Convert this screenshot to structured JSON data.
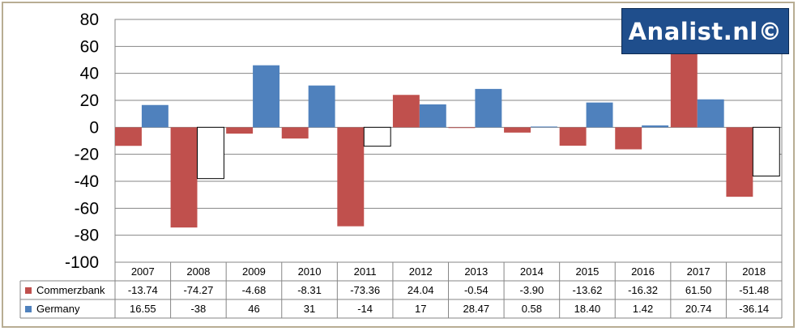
{
  "chart_data": {
    "type": "bar",
    "categories": [
      "2007",
      "2008",
      "2009",
      "2010",
      "2011",
      "2012",
      "2013",
      "2014",
      "2015",
      "2016",
      "2017",
      "2018"
    ],
    "series": [
      {
        "name": "Commerzbank",
        "color": "#c0504d",
        "values": [
          -13.74,
          -74.27,
          -4.68,
          -8.31,
          -73.36,
          24.04,
          -0.54,
          -3.9,
          -13.62,
          -16.32,
          61.5,
          -51.48
        ],
        "labels": [
          "-13.74",
          "-74.27",
          "-4.68",
          "-8.31",
          "-73.36",
          "24.04",
          "-0.54",
          "-3.90",
          "-13.62",
          "-16.32",
          "61.50",
          "-51.48"
        ]
      },
      {
        "name": "Germany",
        "color": "#4f81bd",
        "negative_fill": "#ffffff",
        "values": [
          16.55,
          -38,
          46,
          31,
          -14,
          17,
          28.47,
          0.58,
          18.4,
          1.42,
          20.74,
          -36.14
        ],
        "labels": [
          "16.55",
          "-38",
          "46",
          "31",
          "-14",
          "17",
          "28.47",
          "0.58",
          "18.40",
          "1.42",
          "20.74",
          "-36.14"
        ]
      }
    ],
    "ylim": [
      -100,
      80
    ],
    "yticks": [
      "80",
      "60",
      "40",
      "20",
      "0",
      "-20",
      "-40",
      "-60",
      "-80",
      "-100"
    ],
    "grid": true,
    "legend": "data-table"
  },
  "logo": {
    "text": "Analist.nl©"
  }
}
